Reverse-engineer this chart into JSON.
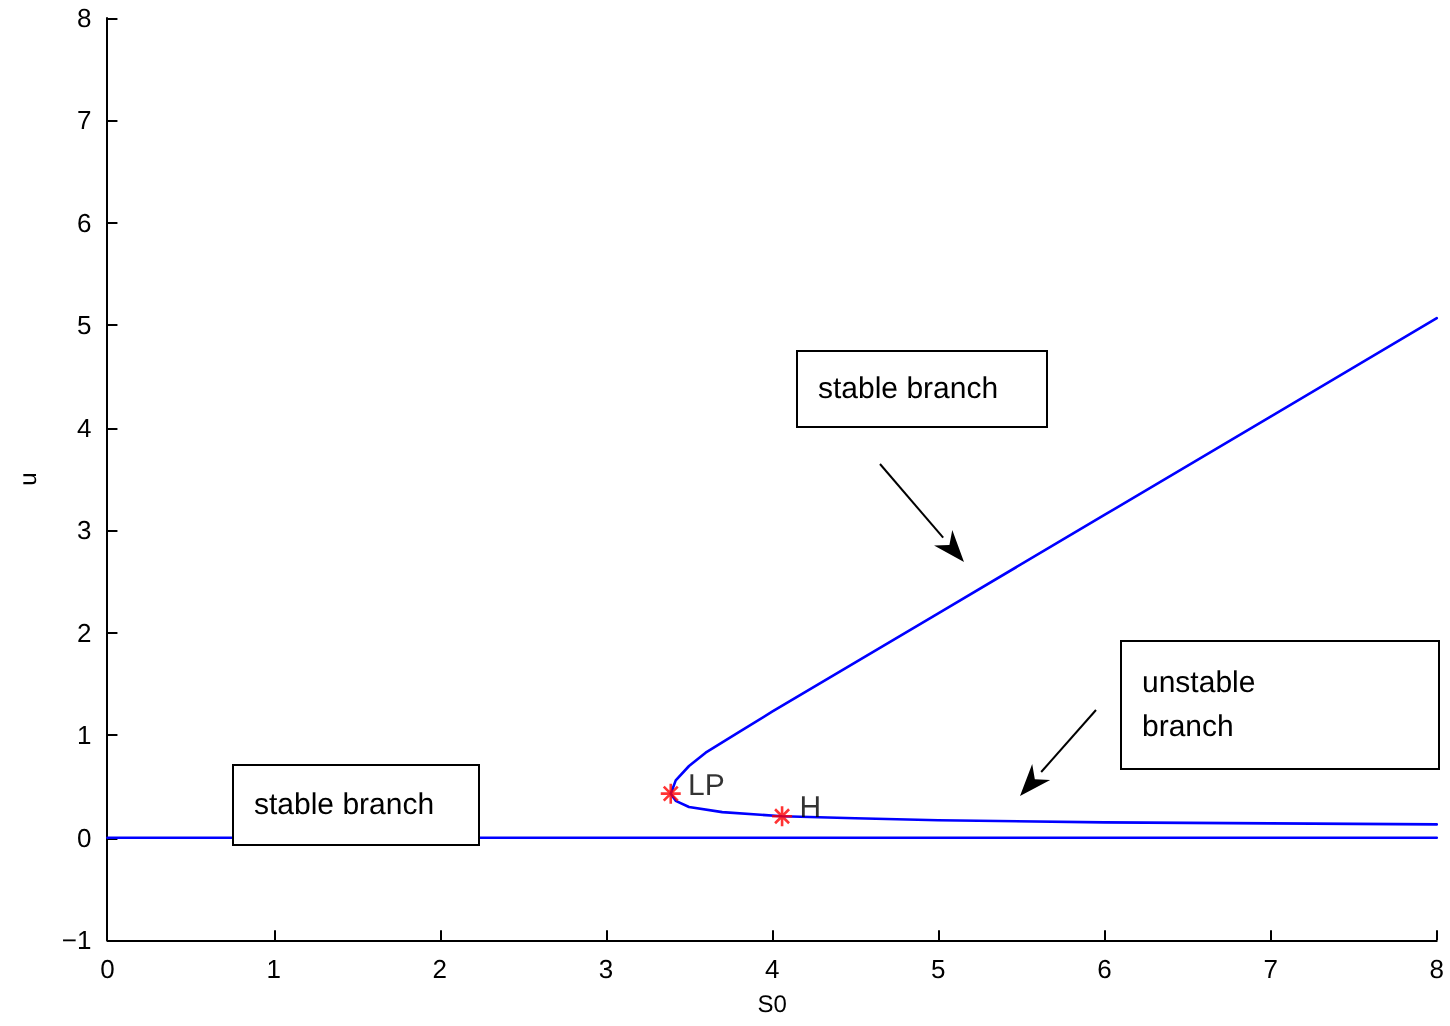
{
  "chart_data": {
    "type": "line",
    "xlabel": "S0",
    "ylabel": "u",
    "xlim": [
      0,
      8
    ],
    "ylim": [
      -1,
      8
    ],
    "xticks": [
      0,
      1,
      2,
      3,
      4,
      5,
      6,
      7,
      8
    ],
    "yticks": [
      -1,
      0,
      1,
      2,
      3,
      4,
      5,
      6,
      7,
      8
    ],
    "grid": false,
    "legend": false,
    "marker": "none",
    "line_style": "solid",
    "series": [
      {
        "color": "#0000ff",
        "x": [
          0,
          8
        ],
        "values": [
          0,
          0
        ]
      },
      {
        "color": "#0000ff",
        "x": [
          8,
          7,
          6,
          5,
          4.5,
          4.06,
          3.7,
          3.5,
          3.42,
          3.39,
          3.42,
          3.5,
          3.6,
          3.8,
          4,
          5,
          6,
          7,
          8
        ],
        "values": [
          0.13,
          0.14,
          0.15,
          0.17,
          0.19,
          0.21,
          0.25,
          0.3,
          0.36,
          0.43,
          0.56,
          0.7,
          0.83,
          1.03,
          1.23,
          2.19,
          3.15,
          4.11,
          5.07
        ]
      },
      {
        "type": "scatter",
        "name": "LP",
        "color": "#ff0000",
        "marker": "cross",
        "x": [
          3.39
        ],
        "values": [
          0.43
        ]
      },
      {
        "type": "scatter",
        "name": "H",
        "color": "#ff0000",
        "marker": "cross",
        "x": [
          4.06
        ],
        "values": [
          0.21
        ]
      }
    ],
    "annotations": [
      "stable branch",
      "stable branch",
      "unstable branch"
    ]
  }
}
